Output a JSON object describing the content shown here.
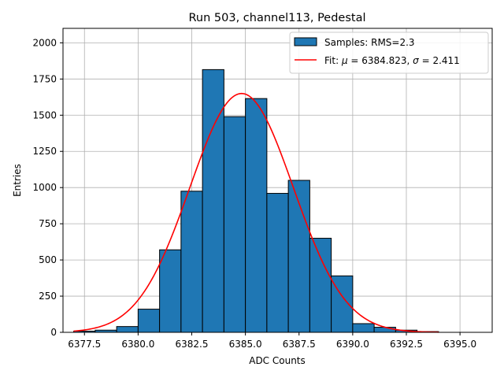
{
  "chart_data": {
    "type": "bar",
    "title": "Run 503, channel113, Pedestal",
    "xlabel": "ADC Counts",
    "ylabel": "Entries",
    "xlim": [
      6376.5,
      6396.5
    ],
    "ylim": [
      0,
      2100
    ],
    "grid": true,
    "bin_width": 1,
    "bin_edges_start": 6377,
    "values": [
      8,
      15,
      40,
      160,
      570,
      975,
      1815,
      1490,
      1615,
      960,
      1050,
      650,
      390,
      60,
      35,
      15,
      5,
      0,
      0
    ],
    "x_ticks": [
      6377.5,
      6380.0,
      6382.5,
      6385.0,
      6387.5,
      6390.0,
      6392.5,
      6395.0
    ],
    "x_tick_labels": [
      "6377.5",
      "6380.0",
      "6382.5",
      "6385.0",
      "6387.5",
      "6390.0",
      "6392.5",
      "6395.0"
    ],
    "y_ticks": [
      0,
      250,
      500,
      750,
      1000,
      1250,
      1500,
      1750,
      2000
    ],
    "y_tick_labels": [
      "0",
      "250",
      "500",
      "750",
      "1000",
      "1250",
      "1500",
      "1750",
      "2000"
    ],
    "fit": {
      "mu": 6384.823,
      "sigma": 2.411,
      "amplitude": 1650,
      "x_range": [
        6377,
        6394
      ],
      "color": "#ff0000"
    },
    "bar_color": "#1f77b4",
    "legend": {
      "location": "top-right",
      "entries": [
        {
          "label": "Samples: RMS=2.3",
          "kind": "patch",
          "color": "#1f77b4"
        },
        {
          "label_prefix": "Fit: ",
          "label": "Fit: μ = 6384.823, σ = 2.411",
          "label_mu": "μ",
          "label_mid": " = 6384.823, ",
          "label_sigma": "σ",
          "label_end": " = 2.411",
          "kind": "line",
          "color": "#ff0000"
        }
      ]
    }
  }
}
